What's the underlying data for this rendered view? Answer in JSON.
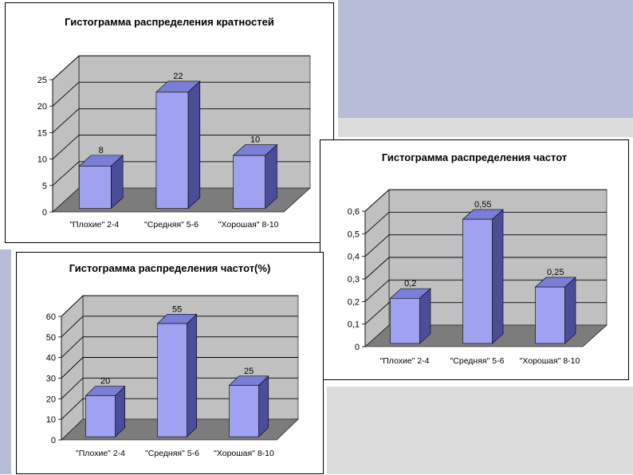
{
  "colors": {
    "bar_front": "#9fa2f0",
    "bar_top": "#7a7ed6",
    "bar_side": "#4a4e96",
    "back_wall": "#c0c0c0",
    "floor": "#7c7c7c",
    "grid": "#000000"
  },
  "chart_data": [
    {
      "type": "bar",
      "title": "Гистограмма распределения кратностей",
      "categories": [
        "\"Плохие\" 2-4",
        "\"Средняя\" 5-6",
        "\"Хорошая\" 8-10"
      ],
      "values": [
        8,
        22,
        10
      ],
      "data_labels": [
        "8",
        "22",
        "10"
      ],
      "ylim": [
        0,
        25
      ],
      "yticks": [
        "0",
        "5",
        "10",
        "15",
        "20",
        "25"
      ],
      "grid": true,
      "legend": "none"
    },
    {
      "type": "bar",
      "title": "Гистограмма распределения частот",
      "categories": [
        "\"Плохие\" 2-4",
        "\"Средняя\" 5-6",
        "\"Хорошая\" 8-10"
      ],
      "values": [
        0.2,
        0.55,
        0.25
      ],
      "data_labels": [
        "0,2",
        "0,55",
        "0,25"
      ],
      "ylim": [
        0,
        0.6
      ],
      "yticks": [
        "0",
        "0,1",
        "0,2",
        "0,3",
        "0,4",
        "0,5",
        "0,6"
      ],
      "grid": true,
      "legend": "none"
    },
    {
      "type": "bar",
      "title": "Гистограмма распределения частот(%)",
      "categories": [
        "\"Плохие\" 2-4",
        "\"Средняя\" 5-6",
        "\"Хорошая\" 8-10"
      ],
      "values": [
        20,
        55,
        25
      ],
      "data_labels": [
        "20",
        "55",
        "25"
      ],
      "ylim": [
        0,
        60
      ],
      "yticks": [
        "0",
        "10",
        "20",
        "30",
        "40",
        "50",
        "60"
      ],
      "grid": true,
      "legend": "none"
    }
  ]
}
